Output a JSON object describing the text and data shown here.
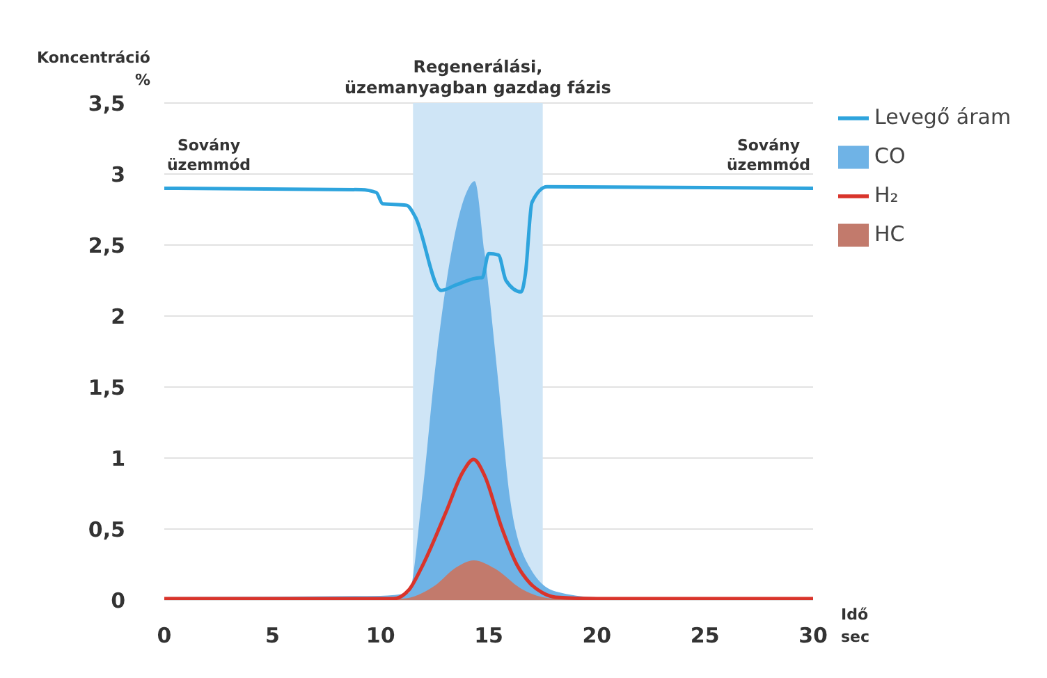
{
  "chart_data": {
    "type": "line",
    "xlabel": "Idő\nsec",
    "ylabel": "Koncentráció\n%",
    "xlim": [
      0,
      30
    ],
    "xticks": [
      0,
      5,
      10,
      15,
      20,
      25,
      30
    ],
    "ylim": [
      0,
      3.5
    ],
    "yticks": [
      0,
      {
        "value": 0.5,
        "label": "0,5"
      },
      1,
      {
        "value": 1.5,
        "label": "1,5"
      },
      2,
      {
        "value": 2.5,
        "label": "2,5"
      },
      3,
      {
        "value": 3.5,
        "label": "3,5"
      }
    ],
    "grid": true,
    "legend": "top right",
    "marker": "none",
    "line_style": "solid",
    "bands": [
      {
        "axis": "x",
        "from": 11.5,
        "to": 17.5,
        "label": "Regenerálási,\nüzemanyagban gazdag fázis",
        "color": "#cfe5f6"
      }
    ],
    "annotations": [
      "Sovány\nüzemmód",
      "Sovány\nüzemmód"
    ],
    "series": [
      {
        "name": "Levegő áram",
        "type": "line",
        "color": "#2ea4dd",
        "x": [
          0,
          9.1,
          9.8,
          10.1,
          11.2,
          11.6,
          12.8,
          13.5,
          14.6,
          14.7,
          15.0,
          15.45,
          15.8,
          16.5,
          16.7,
          17.0,
          17.7,
          30
        ],
        "values": [
          2.9,
          2.89,
          2.87,
          2.79,
          2.78,
          2.7,
          2.18,
          2.22,
          2.27,
          2.27,
          2.44,
          2.43,
          2.25,
          2.17,
          2.3,
          2.8,
          2.91,
          2.9
        ]
      },
      {
        "name": "CO",
        "type": "area",
        "color": "#6fb3e6",
        "x": [
          0,
          10,
          11.3,
          11.9,
          12.55,
          13.4,
          14.0,
          14.35,
          14.8,
          15.4,
          16.0,
          16.9,
          18.1,
          20,
          30
        ],
        "values": [
          0.02,
          0.03,
          0.05,
          0.7,
          1.66,
          2.55,
          2.88,
          2.95,
          2.46,
          1.6,
          0.7,
          0.23,
          0.06,
          0.02,
          0.02
        ]
      },
      {
        "name": "H₂",
        "type": "line",
        "color": "#d9342b",
        "x": [
          0,
          10.6,
          11.3,
          11.9,
          13.0,
          13.8,
          14.3,
          14.8,
          15.6,
          16.3,
          16.9,
          17.5,
          18.1,
          20,
          30
        ],
        "values": [
          0.01,
          0.01,
          0.07,
          0.23,
          0.61,
          0.9,
          0.99,
          0.88,
          0.51,
          0.25,
          0.12,
          0.05,
          0.02,
          0.01,
          0.01
        ]
      },
      {
        "name": "HC",
        "type": "area",
        "color": "#c27a6c",
        "x": [
          0,
          11.0,
          12.5,
          13.5,
          14.3,
          15.3,
          16.5,
          18,
          30
        ],
        "values": [
          0,
          0.01,
          0.1,
          0.23,
          0.28,
          0.22,
          0.08,
          0.01,
          0
        ]
      }
    ]
  }
}
